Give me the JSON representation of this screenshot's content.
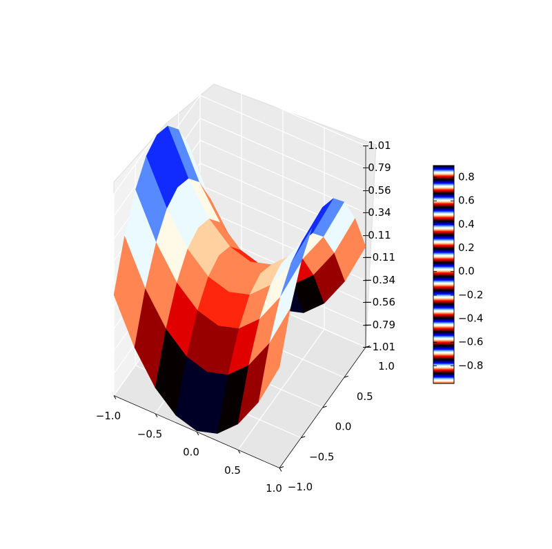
{
  "chart_data": {
    "type": "surface3d",
    "colormap": "flag",
    "x": [
      -1,
      -0.75,
      -0.5,
      -0.25,
      0,
      0.25,
      0.5,
      0.75,
      1
    ],
    "y": [
      -1,
      -0.75,
      -0.5,
      -0.25,
      0,
      0.25,
      0.5,
      0.75,
      1
    ],
    "z": [
      [
        0,
        -0.4375,
        -0.75,
        -0.9375,
        -1,
        -0.9375,
        -0.75,
        -0.4375,
        0
      ],
      [
        0.4375,
        0,
        -0.3125,
        -0.5,
        -0.5625,
        -0.5,
        -0.3125,
        0,
        0.4375
      ],
      [
        0.75,
        0.3125,
        0,
        -0.1875,
        -0.25,
        -0.1875,
        0,
        0.3125,
        0.75
      ],
      [
        0.9375,
        0.5,
        0.1875,
        0,
        -0.0625,
        0,
        0.1875,
        0.5,
        0.9375
      ],
      [
        1,
        0.5625,
        0.25,
        0.0625,
        0,
        0.0625,
        0.25,
        0.5625,
        1
      ],
      [
        0.9375,
        0.5,
        0.1875,
        0,
        -0.0625,
        0,
        0.1875,
        0.5,
        0.9375
      ],
      [
        0.75,
        0.3125,
        0,
        -0.1875,
        -0.25,
        -0.1875,
        0,
        0.3125,
        0.75
      ],
      [
        0.4375,
        0,
        -0.3125,
        -0.5,
        -0.5625,
        -0.5,
        -0.3125,
        0,
        0.4375
      ],
      [
        0,
        -0.4375,
        -0.75,
        -0.9375,
        -1,
        -0.9375,
        -0.75,
        -0.4375,
        0
      ]
    ],
    "xlim": [
      -1,
      1
    ],
    "ylim": [
      -1,
      1
    ],
    "zlim": [
      -1.01,
      1.01
    ],
    "xticks": [
      {
        "value": -1,
        "label": "−1.0"
      },
      {
        "value": -0.5,
        "label": "−0.5"
      },
      {
        "value": 0,
        "label": "0.0"
      },
      {
        "value": 0.5,
        "label": "0.5"
      },
      {
        "value": 1,
        "label": "1.0"
      }
    ],
    "yticks": [
      {
        "value": -1,
        "label": "−1.0"
      },
      {
        "value": -0.5,
        "label": "−0.5"
      },
      {
        "value": 0,
        "label": "0.0"
      },
      {
        "value": 0.5,
        "label": "0.5"
      },
      {
        "value": 1,
        "label": "1.0"
      }
    ],
    "zticks": [
      {
        "value": -1.01,
        "label": "−1.01"
      },
      {
        "value": -0.79,
        "label": "−0.79"
      },
      {
        "value": -0.56,
        "label": "−0.56"
      },
      {
        "value": -0.34,
        "label": "−0.34"
      },
      {
        "value": -0.11,
        "label": "−0.11"
      },
      0.11,
      0.34,
      0.56,
      0.79,
      1.01
    ],
    "clim": [
      -0.95,
      0.9
    ],
    "cticks": [
      {
        "value": -0.8,
        "label": "−0.8"
      },
      {
        "value": -0.6,
        "label": "−0.6"
      },
      {
        "value": -0.4,
        "label": "−0.4"
      },
      {
        "value": -0.2,
        "label": "−0.2"
      },
      {
        "value": 0,
        "label": "0.0"
      },
      0.2,
      0.4,
      0.6,
      0.8
    ],
    "grid": true
  }
}
